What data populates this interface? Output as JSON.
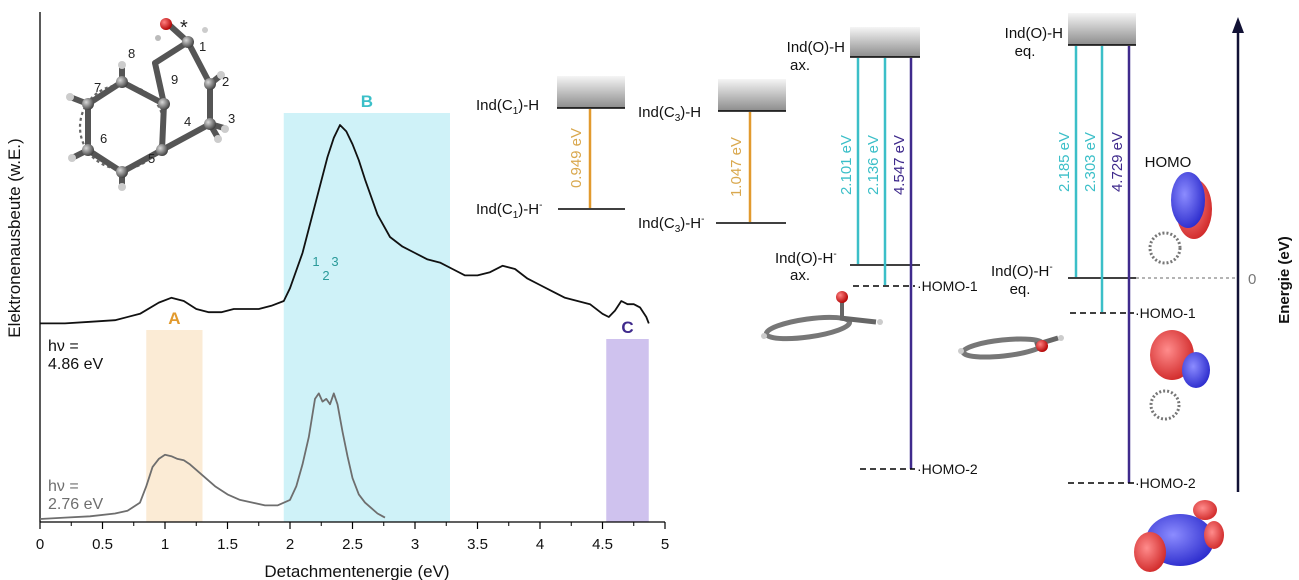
{
  "colors": {
    "teal": "#3BBFC8",
    "teal_dark": "#1E9BA3",
    "orange": "#E29A2E",
    "gold": "#D9A84E",
    "purple": "#3F2A8C",
    "band_a": "#FBEBD5",
    "band_b": "#CFF2F8",
    "band_c": "#CFC2EE",
    "gray_trace": "#6E6E6E",
    "navy": "#121235"
  },
  "chart_data": {
    "type": "line",
    "xlabel": "Detachmentenergie (eV)",
    "ylabel": "Elektronenausbeute (w.E.)",
    "xlim": [
      0,
      5
    ],
    "xticks": [
      "0",
      "0.5",
      "1",
      "1.5",
      "2",
      "2.5",
      "3",
      "3.5",
      "4",
      "4.5",
      "5"
    ],
    "bands": [
      {
        "label": "A",
        "range": [
          0.85,
          1.3
        ]
      },
      {
        "label": "B",
        "range": [
          1.95,
          3.28
        ]
      },
      {
        "label": "C",
        "range": [
          4.53,
          4.87
        ]
      }
    ],
    "series": [
      {
        "name_line1": "hν =",
        "name_line2": "4.86 eV",
        "x": [
          0.0,
          0.2,
          0.4,
          0.6,
          0.8,
          0.95,
          1.05,
          1.15,
          1.25,
          1.35,
          1.45,
          1.55,
          1.65,
          1.75,
          1.85,
          1.95,
          2.0,
          2.1,
          2.2,
          2.3,
          2.35,
          2.4,
          2.45,
          2.5,
          2.55,
          2.6,
          2.7,
          2.8,
          2.9,
          3.0,
          3.1,
          3.2,
          3.3,
          3.4,
          3.5,
          3.6,
          3.7,
          3.8,
          3.9,
          4.0,
          4.1,
          4.2,
          4.3,
          4.4,
          4.5,
          4.55,
          4.6,
          4.65,
          4.7,
          4.75,
          4.8,
          4.85,
          4.87
        ],
        "y": [
          0.18,
          0.18,
          0.185,
          0.19,
          0.21,
          0.245,
          0.26,
          0.25,
          0.225,
          0.215,
          0.215,
          0.225,
          0.225,
          0.225,
          0.235,
          0.25,
          0.29,
          0.4,
          0.55,
          0.7,
          0.76,
          0.8,
          0.78,
          0.74,
          0.69,
          0.63,
          0.52,
          0.45,
          0.42,
          0.4,
          0.38,
          0.37,
          0.35,
          0.33,
          0.33,
          0.34,
          0.36,
          0.35,
          0.32,
          0.3,
          0.28,
          0.26,
          0.25,
          0.24,
          0.21,
          0.2,
          0.22,
          0.25,
          0.24,
          0.24,
          0.23,
          0.2,
          0.18
        ]
      },
      {
        "name_line1": "hν =",
        "name_line2": "2.76 eV",
        "x": [
          0.0,
          0.2,
          0.4,
          0.6,
          0.7,
          0.8,
          0.85,
          0.9,
          0.95,
          1.0,
          1.05,
          1.1,
          1.15,
          1.2,
          1.3,
          1.4,
          1.5,
          1.6,
          1.7,
          1.8,
          1.9,
          2.0,
          2.05,
          2.1,
          2.15,
          2.2,
          2.23,
          2.26,
          2.29,
          2.32,
          2.35,
          2.38,
          2.42,
          2.46,
          2.5,
          2.55,
          2.6,
          2.65,
          2.7,
          2.76
        ],
        "y": [
          0.0,
          0.005,
          0.01,
          0.02,
          0.03,
          0.06,
          0.12,
          0.19,
          0.22,
          0.235,
          0.23,
          0.22,
          0.215,
          0.2,
          0.16,
          0.12,
          0.09,
          0.07,
          0.06,
          0.05,
          0.05,
          0.07,
          0.12,
          0.2,
          0.3,
          0.44,
          0.46,
          0.43,
          0.44,
          0.42,
          0.46,
          0.42,
          0.32,
          0.23,
          0.15,
          0.09,
          0.06,
          0.04,
          0.02,
          0.005
        ]
      }
    ],
    "peak_labels": [
      "1",
      "2",
      "3"
    ]
  },
  "molecule": {
    "labels": [
      "1",
      "2",
      "3",
      "4",
      "5",
      "6",
      "7",
      "8",
      "9"
    ],
    "star": "*"
  },
  "levels": {
    "c1": {
      "upper": "Ind(C",
      "sub": "1",
      "upper_tail": ")-H",
      "lower": "Ind(C",
      "lower_tail": ")-H",
      "sup": "-",
      "value": "0.949 eV"
    },
    "c3": {
      "upper": "Ind(C",
      "sub": "3",
      "upper_tail": ")-H",
      "lower": "Ind(C",
      "lower_tail": ")-H",
      "sup": "-",
      "value": "1.047 eV"
    },
    "ax": {
      "upper1": "Ind(O)-H",
      "upper2": "ax.",
      "lower1": "Ind(O)-H",
      "lower2": "ax.",
      "sup": "-",
      "values": [
        "2.101 eV",
        "2.136 eV",
        "4.547 eV"
      ],
      "homo1": "HOMO-1",
      "homo2": "HOMO-2"
    },
    "eq": {
      "upper1": "Ind(O)-H",
      "upper2": "eq.",
      "lower1": "Ind(O)-H",
      "lower2": "eq.",
      "sup": "-",
      "values": [
        "2.185 eV",
        "2.303 eV",
        "4.729 eV"
      ],
      "homo": "HOMO",
      "homo1": "HOMO-1",
      "homo2": "HOMO-2"
    }
  },
  "energy_axis": {
    "label": "Energie (eV)",
    "zero": "0"
  }
}
